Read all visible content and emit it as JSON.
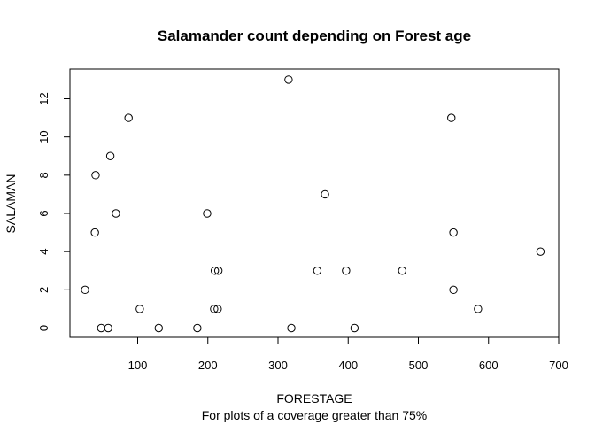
{
  "chart_data": {
    "type": "scatter",
    "title": "Salamander count depending on Forest age",
    "subtitle": "For plots of a coverage greater than 75%",
    "xlabel": "FORESTAGE",
    "ylabel": "SALAMAN",
    "xlim": [
      0,
      700
    ],
    "ylim": [
      0,
      13
    ],
    "xticks": [
      100,
      200,
      300,
      400,
      500,
      600,
      700
    ],
    "yticks": [
      0,
      2,
      4,
      6,
      8,
      10,
      12
    ],
    "grid": false,
    "points": [
      {
        "x": 315,
        "y": 13
      },
      {
        "x": 87,
        "y": 11
      },
      {
        "x": 547,
        "y": 11
      },
      {
        "x": 61,
        "y": 9
      },
      {
        "x": 40,
        "y": 8
      },
      {
        "x": 367,
        "y": 7
      },
      {
        "x": 69,
        "y": 6
      },
      {
        "x": 199,
        "y": 6
      },
      {
        "x": 39,
        "y": 5
      },
      {
        "x": 550,
        "y": 5
      },
      {
        "x": 674,
        "y": 4
      },
      {
        "x": 210,
        "y": 3
      },
      {
        "x": 215,
        "y": 3
      },
      {
        "x": 356,
        "y": 3
      },
      {
        "x": 397,
        "y": 3
      },
      {
        "x": 477,
        "y": 3
      },
      {
        "x": 25,
        "y": 2
      },
      {
        "x": 550,
        "y": 2
      },
      {
        "x": 103,
        "y": 1
      },
      {
        "x": 209,
        "y": 1
      },
      {
        "x": 214,
        "y": 1
      },
      {
        "x": 585,
        "y": 1
      },
      {
        "x": 48,
        "y": 0
      },
      {
        "x": 58,
        "y": 0
      },
      {
        "x": 130,
        "y": 0
      },
      {
        "x": 185,
        "y": 0
      },
      {
        "x": 319,
        "y": 0
      },
      {
        "x": 409,
        "y": 0
      }
    ]
  }
}
